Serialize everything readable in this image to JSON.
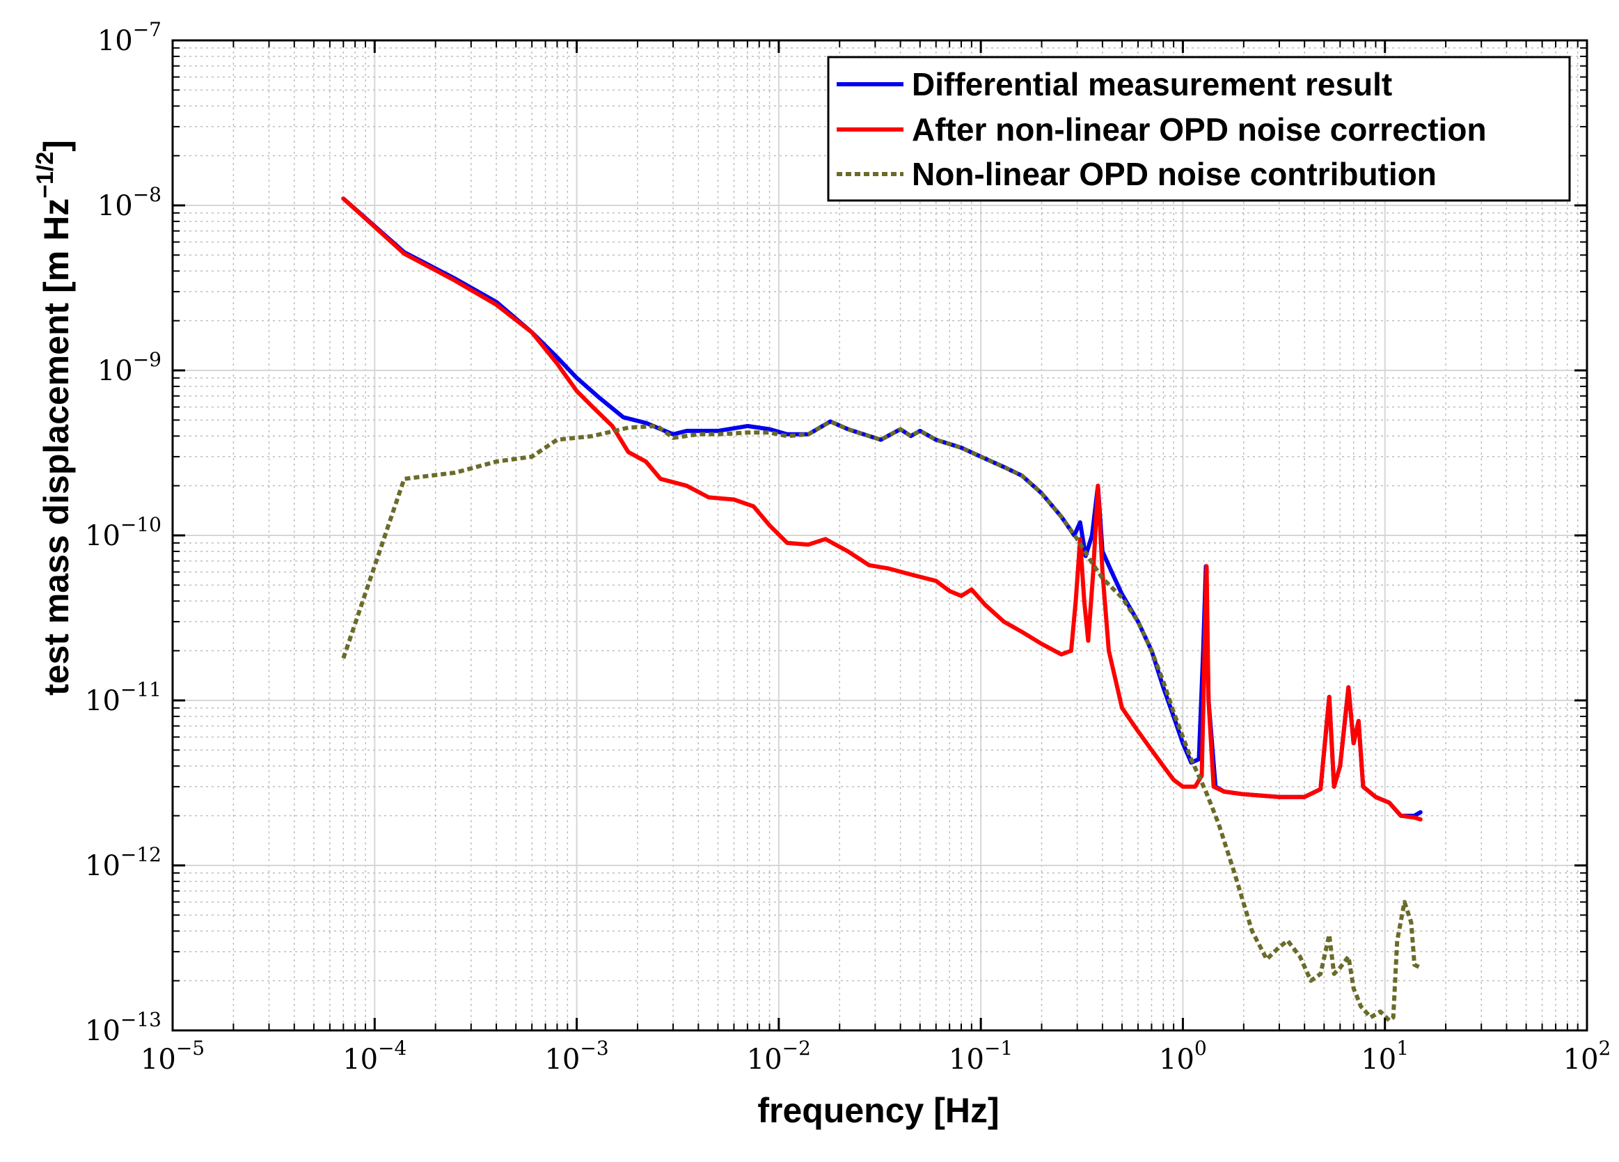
{
  "chart_data": {
    "type": "line",
    "title": "",
    "xlabel": "frequency [Hz]",
    "ylabel_main": "test mass displacement [m Hz",
    "ylabel_exp": "−1/2",
    "ylabel_close": "]",
    "x_scale": "log",
    "y_scale": "log",
    "xlim": [
      1e-05,
      100
    ],
    "ylim": [
      1e-13,
      1e-07
    ],
    "grid": true,
    "legend_position": "top-right",
    "x_ticks": [
      {
        "value": 1e-05,
        "base": "10",
        "exp": "−5"
      },
      {
        "value": 0.0001,
        "base": "10",
        "exp": "−4"
      },
      {
        "value": 0.001,
        "base": "10",
        "exp": "−3"
      },
      {
        "value": 0.01,
        "base": "10",
        "exp": "−2"
      },
      {
        "value": 0.1,
        "base": "10",
        "exp": "−1"
      },
      {
        "value": 1,
        "base": "10",
        "exp": "0"
      },
      {
        "value": 10,
        "base": "10",
        "exp": "1"
      },
      {
        "value": 100,
        "base": "10",
        "exp": "2"
      }
    ],
    "y_ticks": [
      {
        "value": 1e-13,
        "base": "10",
        "exp": "−13"
      },
      {
        "value": 1e-12,
        "base": "10",
        "exp": "−12"
      },
      {
        "value": 1e-11,
        "base": "10",
        "exp": "−11"
      },
      {
        "value": 1e-10,
        "base": "10",
        "exp": "−10"
      },
      {
        "value": 1e-09,
        "base": "10",
        "exp": "−9"
      },
      {
        "value": 1e-08,
        "base": "10",
        "exp": "−8"
      },
      {
        "value": 1e-07,
        "base": "10",
        "exp": "−7"
      }
    ],
    "series": [
      {
        "name": "Differential measurement result",
        "color": "#0000ee",
        "dash": "solid",
        "points": [
          [
            7e-05,
            1.1e-08
          ],
          [
            0.00014,
            5.2e-09
          ],
          [
            0.00025,
            3.6e-09
          ],
          [
            0.0004,
            2.6e-09
          ],
          [
            0.0006,
            1.7e-09
          ],
          [
            0.0008,
            1.2e-09
          ],
          [
            0.001,
            9e-10
          ],
          [
            0.0013,
            6.8e-10
          ],
          [
            0.0017,
            5.2e-10
          ],
          [
            0.0022,
            4.8e-10
          ],
          [
            0.003,
            4.1e-10
          ],
          [
            0.0035,
            4.3e-10
          ],
          [
            0.005,
            4.3e-10
          ],
          [
            0.007,
            4.6e-10
          ],
          [
            0.009,
            4.4e-10
          ],
          [
            0.011,
            4.1e-10
          ],
          [
            0.014,
            4.1e-10
          ],
          [
            0.018,
            4.9e-10
          ],
          [
            0.022,
            4.4e-10
          ],
          [
            0.028,
            4e-10
          ],
          [
            0.032,
            3.8e-10
          ],
          [
            0.04,
            4.4e-10
          ],
          [
            0.045,
            4e-10
          ],
          [
            0.05,
            4.3e-10
          ],
          [
            0.06,
            3.8e-10
          ],
          [
            0.08,
            3.4e-10
          ],
          [
            0.1,
            3e-10
          ],
          [
            0.13,
            2.6e-10
          ],
          [
            0.16,
            2.3e-10
          ],
          [
            0.2,
            1.8e-10
          ],
          [
            0.25,
            1.3e-10
          ],
          [
            0.29,
            1e-10
          ],
          [
            0.31,
            1.2e-10
          ],
          [
            0.33,
            7.5e-11
          ],
          [
            0.355,
            1e-10
          ],
          [
            0.38,
            2e-10
          ],
          [
            0.4,
            8e-11
          ],
          [
            0.45,
            5.8e-11
          ],
          [
            0.5,
            4.4e-11
          ],
          [
            0.6,
            3e-11
          ],
          [
            0.7,
            2e-11
          ],
          [
            0.8,
            1.2e-11
          ],
          [
            0.9,
            8e-12
          ],
          [
            1.0,
            5.5e-12
          ],
          [
            1.1,
            4.2e-12
          ],
          [
            1.2,
            4.4e-12
          ],
          [
            1.26,
            2e-11
          ],
          [
            1.3,
            6.5e-11
          ],
          [
            1.34,
            1e-11
          ],
          [
            1.45,
            3e-12
          ],
          [
            1.6,
            2.8e-12
          ],
          [
            2,
            2.7e-12
          ],
          [
            3,
            2.6e-12
          ],
          [
            4,
            2.6e-12
          ],
          [
            4.8,
            2.9e-12
          ],
          [
            5.3,
            1.05e-11
          ],
          [
            5.6,
            3e-12
          ],
          [
            6,
            4e-12
          ],
          [
            6.6,
            1.2e-11
          ],
          [
            7,
            5.5e-12
          ],
          [
            7.4,
            7.5e-12
          ],
          [
            7.8,
            3e-12
          ],
          [
            9,
            2.6e-12
          ],
          [
            10.5,
            2.4e-12
          ],
          [
            12,
            2e-12
          ],
          [
            14,
            2e-12
          ],
          [
            15,
            2.1e-12
          ]
        ]
      },
      {
        "name": "After non-linear OPD noise correction",
        "color": "#ff0000",
        "dash": "solid",
        "points": [
          [
            7e-05,
            1.1e-08
          ],
          [
            0.00014,
            5.1e-09
          ],
          [
            0.00025,
            3.5e-09
          ],
          [
            0.0004,
            2.5e-09
          ],
          [
            0.0006,
            1.7e-09
          ],
          [
            0.0008,
            1.1e-09
          ],
          [
            0.001,
            7.5e-10
          ],
          [
            0.0012,
            6e-10
          ],
          [
            0.0015,
            4.6e-10
          ],
          [
            0.0018,
            3.2e-10
          ],
          [
            0.0022,
            2.8e-10
          ],
          [
            0.0026,
            2.2e-10
          ],
          [
            0.0035,
            2e-10
          ],
          [
            0.0045,
            1.7e-10
          ],
          [
            0.006,
            1.65e-10
          ],
          [
            0.0075,
            1.5e-10
          ],
          [
            0.009,
            1.15e-10
          ],
          [
            0.011,
            9e-11
          ],
          [
            0.014,
            8.8e-11
          ],
          [
            0.017,
            9.5e-11
          ],
          [
            0.022,
            8e-11
          ],
          [
            0.028,
            6.6e-11
          ],
          [
            0.035,
            6.3e-11
          ],
          [
            0.045,
            5.8e-11
          ],
          [
            0.06,
            5.3e-11
          ],
          [
            0.07,
            4.6e-11
          ],
          [
            0.08,
            4.3e-11
          ],
          [
            0.09,
            4.7e-11
          ],
          [
            0.105,
            3.8e-11
          ],
          [
            0.13,
            3e-11
          ],
          [
            0.16,
            2.6e-11
          ],
          [
            0.2,
            2.2e-11
          ],
          [
            0.25,
            1.9e-11
          ],
          [
            0.28,
            2e-11
          ],
          [
            0.295,
            4e-11
          ],
          [
            0.31,
            9.5e-11
          ],
          [
            0.325,
            4e-11
          ],
          [
            0.34,
            2.3e-11
          ],
          [
            0.36,
            6e-11
          ],
          [
            0.38,
            2e-10
          ],
          [
            0.4,
            6e-11
          ],
          [
            0.43,
            2e-11
          ],
          [
            0.5,
            9e-12
          ],
          [
            0.6,
            6.5e-12
          ],
          [
            0.7,
            5e-12
          ],
          [
            0.8,
            4e-12
          ],
          [
            0.9,
            3.3e-12
          ],
          [
            1.0,
            3e-12
          ],
          [
            1.15,
            3e-12
          ],
          [
            1.24,
            3.5e-12
          ],
          [
            1.28,
            2e-11
          ],
          [
            1.31,
            6.5e-11
          ],
          [
            1.34,
            1e-11
          ],
          [
            1.42,
            3e-12
          ],
          [
            1.6,
            2.8e-12
          ],
          [
            2,
            2.7e-12
          ],
          [
            3,
            2.6e-12
          ],
          [
            4,
            2.6e-12
          ],
          [
            4.8,
            2.9e-12
          ],
          [
            5.3,
            1.05e-11
          ],
          [
            5.6,
            3e-12
          ],
          [
            6,
            4e-12
          ],
          [
            6.6,
            1.2e-11
          ],
          [
            7,
            5.5e-12
          ],
          [
            7.4,
            7.5e-12
          ],
          [
            7.8,
            3e-12
          ],
          [
            9,
            2.6e-12
          ],
          [
            10.5,
            2.4e-12
          ],
          [
            12,
            2e-12
          ],
          [
            14,
            1.95e-12
          ],
          [
            15,
            1.9e-12
          ]
        ]
      },
      {
        "name": "Non-linear OPD noise contribution",
        "color": "#6b6b2a",
        "dash": "dotted",
        "points": [
          [
            7e-05,
            1.8e-11
          ],
          [
            0.00014,
            2.2e-10
          ],
          [
            0.00025,
            2.4e-10
          ],
          [
            0.0004,
            2.8e-10
          ],
          [
            0.0006,
            3e-10
          ],
          [
            0.0008,
            3.8e-10
          ],
          [
            0.0012,
            4e-10
          ],
          [
            0.0018,
            4.5e-10
          ],
          [
            0.0025,
            4.6e-10
          ],
          [
            0.003,
            3.9e-10
          ],
          [
            0.004,
            4.1e-10
          ],
          [
            0.005,
            4.1e-10
          ],
          [
            0.007,
            4.2e-10
          ],
          [
            0.009,
            4.2e-10
          ],
          [
            0.011,
            4e-10
          ],
          [
            0.014,
            4.1e-10
          ],
          [
            0.018,
            4.9e-10
          ],
          [
            0.022,
            4.4e-10
          ],
          [
            0.028,
            4e-10
          ],
          [
            0.032,
            3.8e-10
          ],
          [
            0.04,
            4.4e-10
          ],
          [
            0.045,
            4e-10
          ],
          [
            0.05,
            4.3e-10
          ],
          [
            0.06,
            3.8e-10
          ],
          [
            0.08,
            3.4e-10
          ],
          [
            0.1,
            3e-10
          ],
          [
            0.13,
            2.6e-10
          ],
          [
            0.16,
            2.3e-10
          ],
          [
            0.2,
            1.8e-10
          ],
          [
            0.25,
            1.3e-10
          ],
          [
            0.3,
            9.5e-11
          ],
          [
            0.35,
            7e-11
          ],
          [
            0.4,
            5.5e-11
          ],
          [
            0.5,
            4.2e-11
          ],
          [
            0.6,
            3e-11
          ],
          [
            0.7,
            2e-11
          ],
          [
            0.8,
            1.3e-11
          ],
          [
            0.9,
            8.5e-12
          ],
          [
            1.0,
            6e-12
          ],
          [
            1.1,
            4.4e-12
          ],
          [
            1.3,
            2.8e-12
          ],
          [
            1.5,
            1.8e-12
          ],
          [
            1.8,
            9e-13
          ],
          [
            2.2,
            4e-13
          ],
          [
            2.6,
            2.7e-13
          ],
          [
            3.0,
            3.2e-13
          ],
          [
            3.3,
            3.5e-13
          ],
          [
            3.8,
            2.8e-13
          ],
          [
            4.3,
            2e-13
          ],
          [
            4.8,
            2.2e-13
          ],
          [
            5.3,
            3.8e-13
          ],
          [
            5.6,
            2.2e-13
          ],
          [
            6,
            2.4e-13
          ],
          [
            6.6,
            2.8e-13
          ],
          [
            7,
            1.8e-13
          ],
          [
            7.6,
            1.4e-13
          ],
          [
            8.5,
            1.2e-13
          ],
          [
            9.5,
            1.3e-13
          ],
          [
            10.5,
            1.15e-13
          ],
          [
            11,
            1.2e-13
          ],
          [
            11.5,
            3.5e-13
          ],
          [
            12.5,
            6e-13
          ],
          [
            13.5,
            4.5e-13
          ],
          [
            14,
            2.5e-13
          ],
          [
            15,
            2.4e-13
          ]
        ]
      }
    ]
  }
}
